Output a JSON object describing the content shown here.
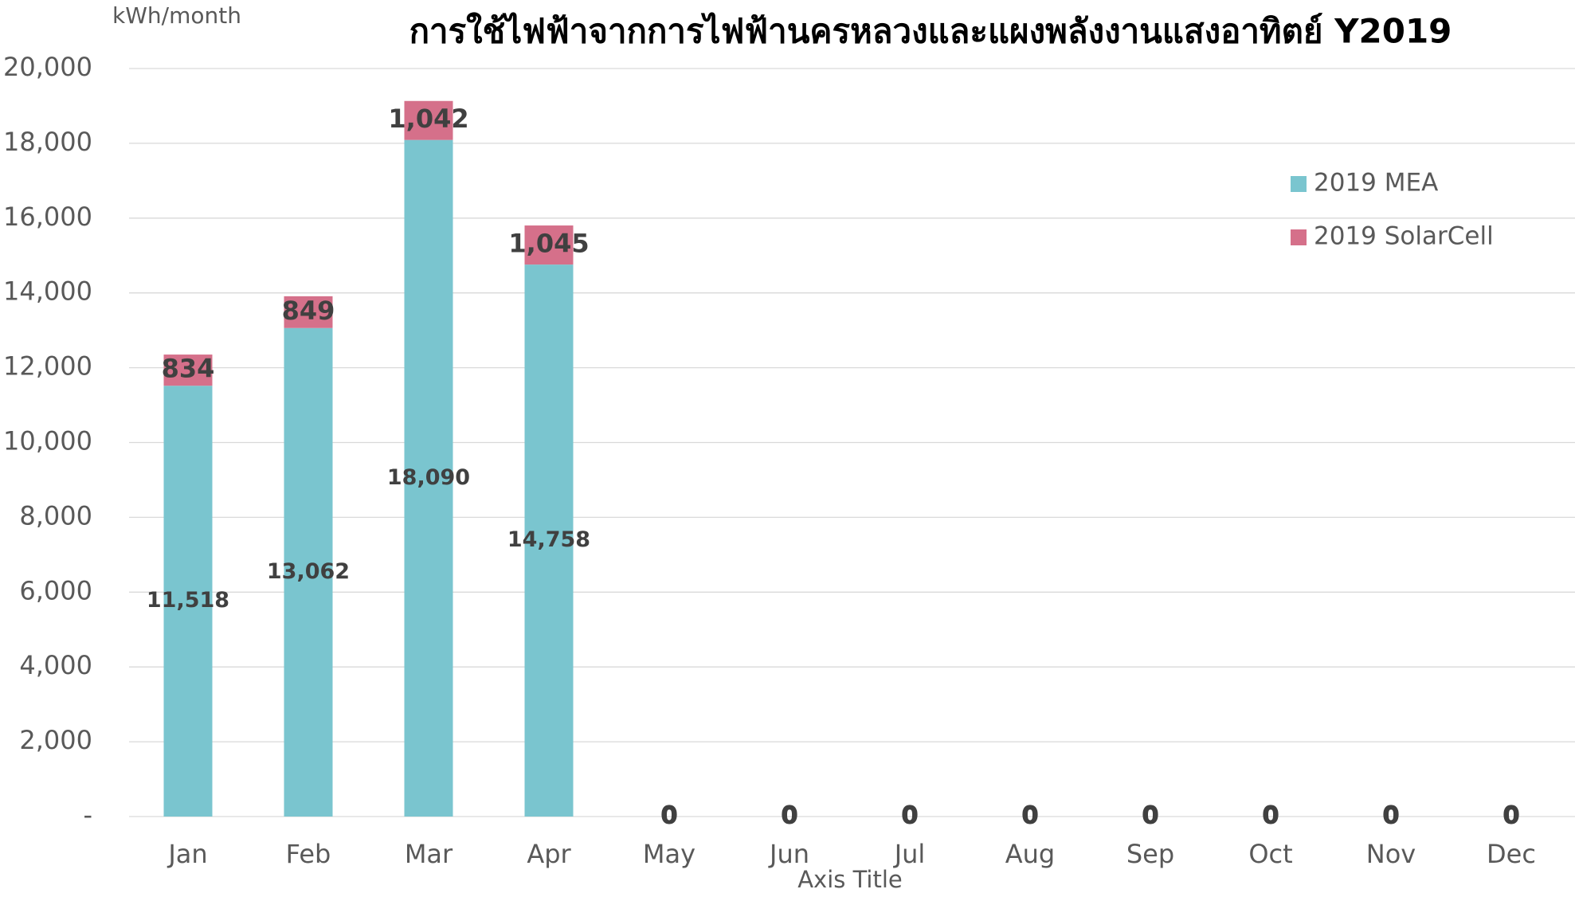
{
  "chart_data": {
    "type": "bar",
    "stacked": true,
    "title": "การใช้ไฟฟ้าจากการไฟฟ้านครหลวงและแผงพลังงานแสงอาทิตย์  Y2019",
    "y_axis_label": "kWh/month",
    "x_axis_label": "Axis Title",
    "categories": [
      "Jan",
      "Feb",
      "Mar",
      "Apr",
      "May",
      "Jun",
      "Jul",
      "Aug",
      "Sep",
      "Oct",
      "Nov",
      "Dec"
    ],
    "series": [
      {
        "name": "2019 MEA",
        "color": "#7ac5cf",
        "values": [
          11518,
          13062,
          18090,
          14758,
          0,
          0,
          0,
          0,
          0,
          0,
          0,
          0
        ],
        "value_labels": [
          "11,518",
          "13,062",
          "18,090",
          "14,758",
          "0",
          "0",
          "0",
          "0",
          "0",
          "0",
          "0",
          "0"
        ]
      },
      {
        "name": "2019 SolarCell",
        "color": "#d5708a",
        "values": [
          834,
          849,
          1042,
          1045,
          0,
          0,
          0,
          0,
          0,
          0,
          0,
          0
        ],
        "value_labels": [
          "834",
          "849",
          "1,042",
          "1,045",
          "0",
          "0",
          "0",
          "0",
          "0",
          "0",
          "0",
          "0"
        ]
      }
    ],
    "ylim": [
      0,
      20000
    ],
    "yticks": [
      {
        "value": 0,
        "label": "-"
      },
      {
        "value": 2000,
        "label": "2,000"
      },
      {
        "value": 4000,
        "label": "4,000"
      },
      {
        "value": 6000,
        "label": "6,000"
      },
      {
        "value": 8000,
        "label": "8,000"
      },
      {
        "value": 10000,
        "label": "10,000"
      },
      {
        "value": 12000,
        "label": "12,000"
      },
      {
        "value": 14000,
        "label": "14,000"
      },
      {
        "value": 16000,
        "label": "16,000"
      },
      {
        "value": 18000,
        "label": "18,000"
      },
      {
        "value": 20000,
        "label": "20,000"
      }
    ],
    "grid": true,
    "legend": "upper right"
  }
}
